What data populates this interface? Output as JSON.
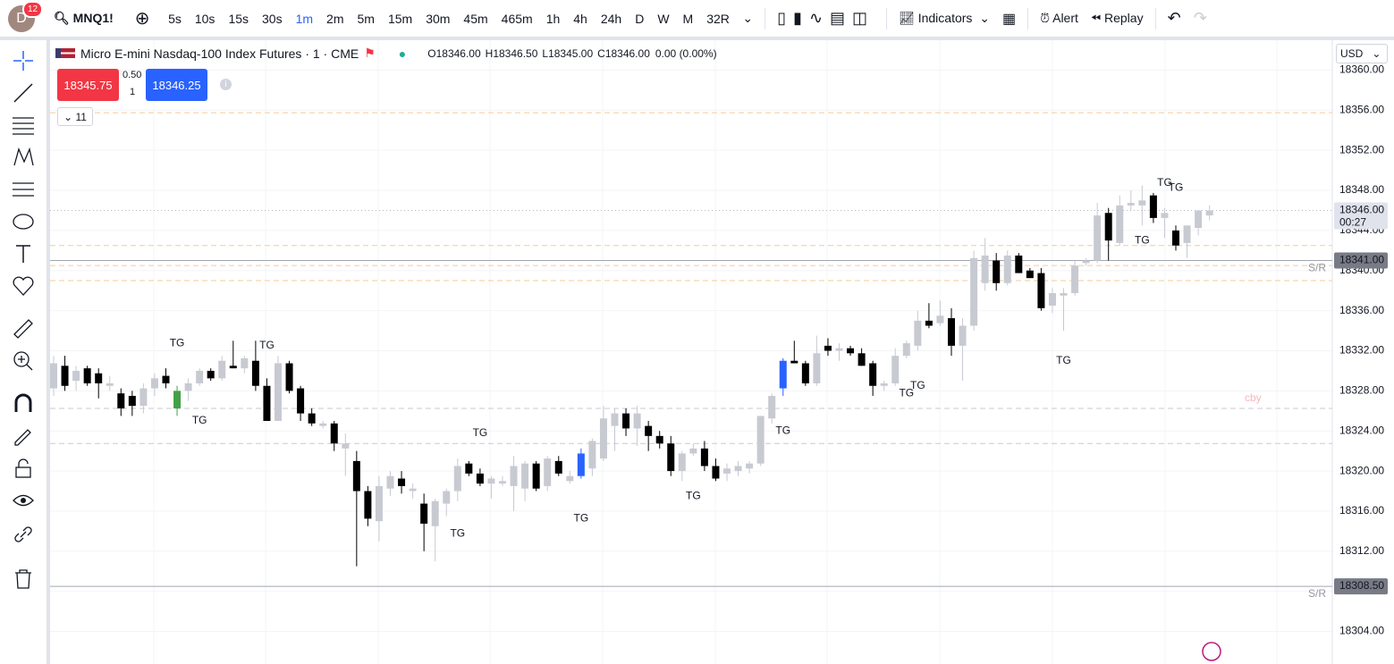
{
  "header": {
    "avatar": "D",
    "badge": "12",
    "symbol": "MNQ1!",
    "intervals": [
      {
        "label": "5s"
      },
      {
        "label": "10s"
      },
      {
        "label": "15s"
      },
      {
        "label": "30s"
      },
      {
        "label": "1m",
        "active": true
      },
      {
        "label": "2m"
      },
      {
        "label": "5m"
      },
      {
        "label": "15m"
      },
      {
        "label": "30m"
      },
      {
        "label": "45m"
      },
      {
        "label": "465m"
      },
      {
        "label": "1h"
      },
      {
        "label": "4h"
      },
      {
        "label": "24h"
      },
      {
        "label": "D"
      },
      {
        "label": "W"
      },
      {
        "label": "M"
      },
      {
        "label": "32R"
      }
    ],
    "indicators": "Indicators",
    "alert": "Alert",
    "replay": "Replay"
  },
  "legend": {
    "title": "Micro E-mini Nasdaq-100 Index Futures · 1 · CME",
    "ohlc": [
      {
        "key": "O",
        "value": "18346.00"
      },
      {
        "key": "H",
        "value": "18346.50"
      },
      {
        "key": "L",
        "value": "18345.00"
      },
      {
        "key": "C",
        "value": "18346.00"
      }
    ],
    "change": "0.00 (0.00%)"
  },
  "trade": {
    "sell": "18345.75",
    "spread": "0.50",
    "qty": "1",
    "buy": "18346.25"
  },
  "collapse": "11",
  "currency": "USD",
  "faint_label": "cby",
  "chart_data": {
    "type": "candlestick",
    "ylim": [
      18300.75,
      18363.25
    ],
    "yticks": [
      {
        "value": 18304,
        "label": "18304.00"
      },
      {
        "value": 18308,
        "label": "18308.00"
      },
      {
        "value": 18312,
        "label": "18312.00"
      },
      {
        "value": 18316,
        "label": "18316.00"
      },
      {
        "value": 18320,
        "label": "18320.00"
      },
      {
        "value": 18324,
        "label": "18324.00"
      },
      {
        "value": 18328,
        "label": "18328.00"
      },
      {
        "value": 18332,
        "label": "18332.00"
      },
      {
        "value": 18336,
        "label": "18336.00"
      },
      {
        "value": 18340,
        "label": "18340.00"
      },
      {
        "value": 18344,
        "label": "18344.00"
      },
      {
        "value": 18348,
        "label": "18348.00"
      },
      {
        "value": 18352,
        "label": "18352.00"
      },
      {
        "value": 18356,
        "label": "18356.00"
      },
      {
        "value": 18360,
        "label": "18360.00"
      }
    ],
    "grid": true,
    "up_color": "#c8cad2",
    "down_color": "#000000",
    "highlights": [
      {
        "index": 11,
        "color": "#43a047"
      },
      {
        "index": 47,
        "color": "#2962ff"
      },
      {
        "index": 65,
        "color": "#2962ff"
      }
    ],
    "ohlc": [
      [
        18328.25,
        18331.5,
        18327.5,
        18330.75
      ],
      [
        18330.5,
        18331.5,
        18328.0,
        18328.5
      ],
      [
        18329.0,
        18330.5,
        18328.0,
        18330.0
      ],
      [
        18330.25,
        18330.5,
        18328.5,
        18328.75
      ],
      [
        18329.75,
        18330.25,
        18327.25,
        18328.75
      ],
      [
        18328.5,
        18329.5,
        18328.0,
        18328.75
      ],
      [
        18327.75,
        18328.25,
        18325.5,
        18326.25
      ],
      [
        18327.5,
        18328.0,
        18325.5,
        18326.5
      ],
      [
        18326.5,
        18328.75,
        18325.75,
        18328.25
      ],
      [
        18328.25,
        18329.75,
        18327.5,
        18329.25
      ],
      [
        18329.5,
        18330.25,
        18328.25,
        18328.75
      ],
      [
        18326.25,
        18328.5,
        18325.5,
        18328.0
      ],
      [
        18328.0,
        18329.25,
        18327.0,
        18328.75
      ],
      [
        18328.75,
        18330.25,
        18328.5,
        18330.0
      ],
      [
        18330.0,
        18330.25,
        18329.0,
        18329.25
      ],
      [
        18329.25,
        18331.5,
        18329.0,
        18331.0
      ],
      [
        18330.5,
        18333.0,
        18330.25,
        18330.25
      ],
      [
        18330.25,
        18331.5,
        18329.75,
        18331.25
      ],
      [
        18331.0,
        18333.0,
        18328.0,
        18328.5
      ],
      [
        18328.5,
        18329.25,
        18325.0,
        18325.0
      ],
      [
        18325.0,
        18331.5,
        18325.0,
        18330.75
      ],
      [
        18330.75,
        18331.0,
        18327.75,
        18328.0
      ],
      [
        18328.25,
        18328.5,
        18325.0,
        18325.75
      ],
      [
        18325.75,
        18326.25,
        18324.5,
        18324.75
      ],
      [
        18324.5,
        18325.0,
        18324.25,
        18324.75
      ],
      [
        18324.75,
        18325.0,
        18322.0,
        18322.75
      ],
      [
        18322.25,
        18323.75,
        18319.5,
        18322.75
      ],
      [
        18321.0,
        18322.0,
        18310.5,
        18318.0
      ],
      [
        18318.0,
        18318.5,
        18314.5,
        18315.25
      ],
      [
        18315.0,
        18319.5,
        18313.0,
        18318.5
      ],
      [
        18318.25,
        18320.0,
        18317.5,
        18319.5
      ],
      [
        18319.25,
        18320.0,
        18317.75,
        18318.5
      ],
      [
        18318.0,
        18318.75,
        18317.25,
        18318.25
      ],
      [
        18316.75,
        18317.75,
        18312.0,
        18314.75
      ],
      [
        18314.5,
        18317.25,
        18311.0,
        18317.0
      ],
      [
        18316.75,
        18318.25,
        18315.5,
        18318.0
      ],
      [
        18318.0,
        18321.25,
        18317.0,
        18320.5
      ],
      [
        18320.75,
        18321.0,
        18319.5,
        18319.75
      ],
      [
        18319.75,
        18320.25,
        18318.5,
        18318.75
      ],
      [
        18318.75,
        18319.5,
        18317.25,
        18319.25
      ],
      [
        18318.75,
        18319.5,
        18318.5,
        18319.0
      ],
      [
        18318.5,
        18321.5,
        18316.0,
        18320.5
      ],
      [
        18318.25,
        18321.0,
        18317.0,
        18320.75
      ],
      [
        18320.75,
        18321.0,
        18318.0,
        18318.25
      ],
      [
        18318.5,
        18321.5,
        18318.0,
        18321.25
      ],
      [
        18321.0,
        18321.5,
        18319.5,
        18319.75
      ],
      [
        18319.0,
        18320.0,
        18318.75,
        18319.5
      ],
      [
        18319.5,
        18322.25,
        18319.25,
        18321.75
      ],
      [
        18320.25,
        18323.25,
        18319.5,
        18323.0
      ],
      [
        18321.25,
        18326.5,
        18321.0,
        18325.25
      ],
      [
        18324.5,
        18326.25,
        18322.0,
        18325.75
      ],
      [
        18325.75,
        18326.25,
        18323.5,
        18324.25
      ],
      [
        18324.25,
        18326.5,
        18322.5,
        18325.75
      ],
      [
        18324.5,
        18325.0,
        18322.0,
        18323.5
      ],
      [
        18323.5,
        18324.0,
        18322.25,
        18322.75
      ],
      [
        18322.75,
        18323.5,
        18319.5,
        18320.0
      ],
      [
        18320.0,
        18322.0,
        18319.0,
        18321.75
      ],
      [
        18321.75,
        18322.75,
        18321.5,
        18322.25
      ],
      [
        18322.25,
        18323.0,
        18320.0,
        18320.5
      ],
      [
        18320.5,
        18321.25,
        18319.0,
        18319.25
      ],
      [
        18319.75,
        18320.75,
        18319.0,
        18320.25
      ],
      [
        18320.0,
        18321.0,
        18319.5,
        18320.5
      ],
      [
        18320.25,
        18321.0,
        18319.75,
        18320.75
      ],
      [
        18320.75,
        18325.5,
        18320.5,
        18325.5
      ],
      [
        18325.25,
        18327.75,
        18324.75,
        18327.5
      ],
      [
        18328.25,
        18331.25,
        18327.5,
        18331.0
      ],
      [
        18331.0,
        18333.0,
        18330.75,
        18330.75
      ],
      [
        18330.75,
        18331.0,
        18328.5,
        18328.75
      ],
      [
        18328.75,
        18333.5,
        18328.5,
        18331.75
      ],
      [
        18332.5,
        18333.25,
        18331.5,
        18332.0
      ],
      [
        18332.0,
        18332.75,
        18331.0,
        18332.25
      ],
      [
        18332.25,
        18332.5,
        18331.5,
        18331.75
      ],
      [
        18331.75,
        18332.25,
        18330.5,
        18330.5
      ],
      [
        18330.75,
        18331.0,
        18327.5,
        18328.5
      ],
      [
        18328.5,
        18329.0,
        18328.0,
        18328.75
      ],
      [
        18328.75,
        18332.25,
        18328.5,
        18331.5
      ],
      [
        18331.5,
        18333.0,
        18331.25,
        18332.75
      ],
      [
        18332.5,
        18336.0,
        18332.0,
        18335.0
      ],
      [
        18335.0,
        18336.75,
        18334.25,
        18334.5
      ],
      [
        18334.75,
        18337.0,
        18334.5,
        18335.5
      ],
      [
        18335.25,
        18336.25,
        18331.5,
        18332.5
      ],
      [
        18332.5,
        18335.25,
        18329.0,
        18334.5
      ],
      [
        18334.5,
        18342.0,
        18334.0,
        18341.25
      ],
      [
        18338.75,
        18343.25,
        18338.0,
        18341.5
      ],
      [
        18341.0,
        18341.75,
        18338.0,
        18338.75
      ],
      [
        18338.75,
        18342.0,
        18338.5,
        18341.5
      ],
      [
        18341.5,
        18341.75,
        18339.75,
        18339.75
      ],
      [
        18340.0,
        18340.25,
        18339.25,
        18339.25
      ],
      [
        18339.75,
        18340.25,
        18336.0,
        18336.25
      ],
      [
        18336.5,
        18338.25,
        18335.75,
        18337.75
      ],
      [
        18337.5,
        18338.25,
        18334.0,
        18337.75
      ],
      [
        18337.75,
        18341.0,
        18337.5,
        18340.5
      ],
      [
        18340.75,
        18341.25,
        18340.5,
        18341.0
      ],
      [
        18341.0,
        18346.75,
        18340.75,
        18345.5
      ],
      [
        18345.75,
        18346.25,
        18341.0,
        18343.0
      ],
      [
        18342.75,
        18347.5,
        18342.5,
        18346.5
      ],
      [
        18346.5,
        18348.0,
        18346.0,
        18346.75
      ],
      [
        18346.5,
        18348.5,
        18344.5,
        18347.0
      ],
      [
        18347.5,
        18347.75,
        18344.75,
        18345.25
      ],
      [
        18345.25,
        18346.25,
        18343.25,
        18345.75
      ],
      [
        18344.0,
        18344.5,
        18342.0,
        18342.5
      ],
      [
        18342.75,
        18344.25,
        18341.25,
        18344.5
      ],
      [
        18344.25,
        18346.0,
        18343.5,
        18346.0
      ],
      [
        18345.5,
        18346.5,
        18345.0,
        18346.0
      ]
    ],
    "levels": [
      {
        "value": 18355.75,
        "color": "#f7c99a"
      },
      {
        "value": 18342.5,
        "color": "#f7c99a"
      },
      {
        "value": 18340.5,
        "color": "#f7c99a"
      },
      {
        "value": 18339.0,
        "color": "#f7c99a"
      },
      {
        "value": 18326.25,
        "color": "#c8cad2"
      },
      {
        "value": 18322.75,
        "color": "#c8cad2"
      }
    ],
    "price_lines": [
      {
        "value": 18341.0,
        "label": "18341.00",
        "tag": "S/R"
      },
      {
        "value": 18308.5,
        "label": "18308.50",
        "tag": "S/R"
      }
    ],
    "current": {
      "value": 18346.0,
      "label": "18346.00",
      "countdown": "00:27"
    },
    "annotations": [
      {
        "text": "TG",
        "index": 11,
        "y": 18332.75
      },
      {
        "text": "TG",
        "index": 19,
        "y": 18332.5
      },
      {
        "text": "TG",
        "index": 13,
        "y": 18325.0
      },
      {
        "text": "TG",
        "index": 38,
        "y": 18323.75
      },
      {
        "text": "TG",
        "index": 36,
        "y": 18313.75
      },
      {
        "text": "TG",
        "index": 47,
        "y": 18315.25
      },
      {
        "text": "TG",
        "index": 57,
        "y": 18317.5
      },
      {
        "text": "TG",
        "index": 65,
        "y": 18324.0
      },
      {
        "text": "TG",
        "index": 76,
        "y": 18327.75
      },
      {
        "text": "TG",
        "index": 77,
        "y": 18328.5
      },
      {
        "text": "TG",
        "index": 90,
        "y": 18331.0
      },
      {
        "text": "TG",
        "index": 97,
        "y": 18343.0
      },
      {
        "text": "TG",
        "index": 99,
        "y": 18348.75
      },
      {
        "text": "TG",
        "index": 100,
        "y": 18348.25
      }
    ]
  }
}
